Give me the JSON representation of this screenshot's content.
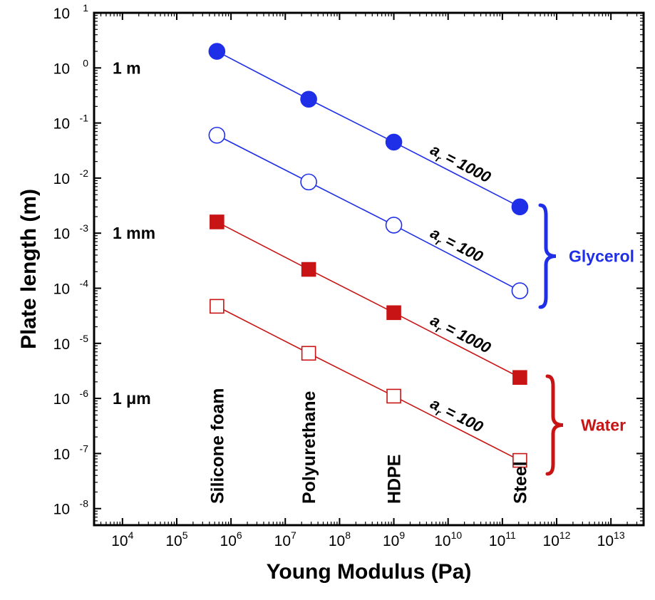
{
  "chart_data": {
    "type": "scatter",
    "xlabel": "Young Modulus (Pa)",
    "ylabel": "Plate length (m)",
    "x_scale": "log",
    "y_scale": "log",
    "xlim": [
      3000,
      40000000000000.0
    ],
    "ylim": [
      5e-09,
      10
    ],
    "x_tick_exponents": [
      4,
      5,
      6,
      7,
      8,
      9,
      10,
      11,
      12,
      13
    ],
    "y_tick_exponents": [
      1,
      0,
      -1,
      -2,
      -3,
      -4,
      -5,
      -6,
      -7,
      -8
    ],
    "materials": [
      {
        "name": "Silicone foam",
        "modulus": 550000
      },
      {
        "name": "Polyurethane",
        "modulus": 27000000
      },
      {
        "name": "HDPE",
        "modulus": 1000000000
      },
      {
        "name": "Steel",
        "modulus": 210000000000
      }
    ],
    "series": [
      {
        "name": "a = 1000",
        "sub": "r",
        "prefix": "a",
        "suffix": " = 1000",
        "fluid": "Glycerol",
        "marker": "circle",
        "filled": true,
        "color": "#1f2fe8",
        "x": [
          550000,
          27000000,
          1000000000,
          210000000000
        ],
        "y": [
          2.0,
          0.27,
          0.045,
          0.003
        ]
      },
      {
        "name": "a = 100",
        "sub": "r",
        "prefix": "a",
        "suffix": " = 100",
        "fluid": "Glycerol",
        "marker": "circle",
        "filled": false,
        "color": "#1f2fe8",
        "x": [
          550000,
          27000000,
          1000000000,
          210000000000
        ],
        "y": [
          0.06,
          0.0085,
          0.0014,
          9e-05
        ]
      },
      {
        "name": "a = 1000",
        "sub": "r",
        "prefix": "a",
        "suffix": " = 1000",
        "fluid": "Water",
        "marker": "square",
        "filled": true,
        "color": "#c81414",
        "x": [
          550000,
          27000000,
          1000000000,
          210000000000
        ],
        "y": [
          0.0016,
          0.00022,
          3.6e-05,
          2.4e-06
        ]
      },
      {
        "name": "a = 100",
        "sub": "r",
        "prefix": "a",
        "suffix": " = 100",
        "fluid": "Water",
        "marker": "square",
        "filled": false,
        "color": "#c81414",
        "x": [
          550000,
          27000000,
          1000000000,
          210000000000
        ],
        "y": [
          4.7e-05,
          6.6e-06,
          1.1e-06,
          7.5e-08
        ]
      }
    ],
    "scale_annotations": [
      {
        "label": "1 m",
        "value": 1
      },
      {
        "label": "1 mm",
        "value": 0.001
      },
      {
        "label": "1 μm",
        "value": 1e-06
      }
    ],
    "groups": [
      {
        "label": "Glycerol",
        "color": "#1f2fe8"
      },
      {
        "label": "Water",
        "color": "#c81414"
      }
    ],
    "grid": false,
    "legend": "none"
  }
}
